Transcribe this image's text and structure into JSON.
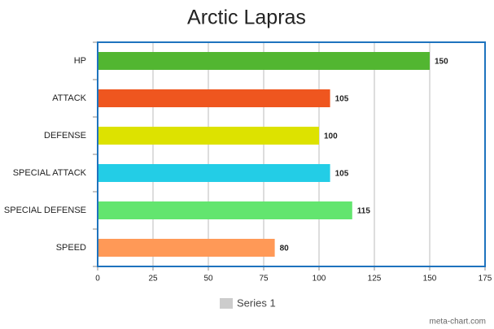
{
  "chart_data": {
    "type": "hbar",
    "title": "Arctic Lapras",
    "categories": [
      "HP",
      "ATTACK",
      "DEFENSE",
      "SPECIAL ATTACK",
      "SPECIAL DEFENSE",
      "SPEED"
    ],
    "series": [
      {
        "name": "Series 1",
        "color": "#cccccc",
        "values": [
          150,
          105,
          100,
          105,
          115,
          80
        ]
      }
    ],
    "colors": [
      "#52b631",
      "#ef561f",
      "#dde200",
      "#23cde6",
      "#63e56f",
      "#ff9957"
    ],
    "xlim": [
      0,
      175
    ],
    "xticks": [
      0,
      25,
      50,
      75,
      100,
      125,
      150,
      175
    ],
    "grid": true,
    "watermark": "meta-chart.com"
  }
}
